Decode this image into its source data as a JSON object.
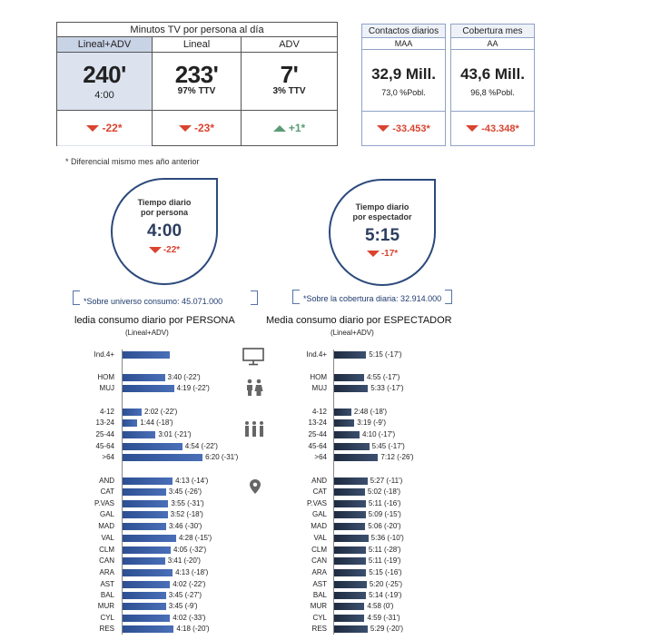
{
  "minutes_table": {
    "title": "Minutos TV por persona al día",
    "columns": [
      {
        "head": "Lineal+ADV",
        "value": "240'",
        "sub": "4:00",
        "diff": "-22*",
        "direction": "down"
      },
      {
        "head": "Lineal",
        "value": "233'",
        "sub": "97% TTV",
        "diff": "-23*",
        "direction": "down"
      },
      {
        "head": "ADV",
        "value": "7'",
        "sub": "3% TTV",
        "diff": "+1*",
        "direction": "up"
      }
    ]
  },
  "kpis": [
    {
      "head": "Contactos diarios",
      "sub": "MAA",
      "value": "32,9 Mill.",
      "small": "73,0 %Pobl.",
      "diff": "-33.453*"
    },
    {
      "head": "Cobertura mes",
      "sub": "AA",
      "value": "43,6 Mill.",
      "small": "96,8 %Pobl.",
      "diff": "-43.348*"
    }
  ],
  "footnote": "* Diferencial mismo mes año anterior",
  "bubbles": [
    {
      "label1": "Tiempo diario",
      "label2": "por persona",
      "time": "4:00",
      "diff": "-22*"
    },
    {
      "label1": "Tiempo diario",
      "label2": "por espectador",
      "time": "5:15",
      "diff": "-17*"
    }
  ],
  "notes": {
    "left": "*Sobre universo consumo: 45.071.000",
    "right": "*Sobre la cobertura diaria: 32.914.000"
  },
  "charts": {
    "left_title": "ledia consumo diario por PERSONA",
    "left_sub": "(Lineal+ADV)",
    "right_title": "Media consumo diario por ESPECTADOR",
    "right_sub": "(Lineal+ADV)"
  },
  "icons": [
    "tv-icon",
    "gender-icon",
    "age-group-icon",
    "location-pin-icon"
  ],
  "colors": {
    "persona_bar": "#3558a4",
    "espectador_bar": "#2a3a55",
    "negative": "#d9432f",
    "positive": "#5a9b75"
  },
  "chart_data": [
    {
      "type": "bar",
      "orientation": "horizontal",
      "title": "ledia consumo diario por PERSONA",
      "subtitle": "(Lineal+ADV)",
      "categories": [
        "Ind.4+",
        "HOM",
        "MUJ",
        "4-12",
        "13-24",
        "25-44",
        "45-64",
        ">64",
        "AND",
        "CAT",
        "P.VAS",
        "GAL",
        "MAD",
        "VAL",
        "CLM",
        "CAN",
        "ARA",
        "AST",
        "BAL",
        "MUR",
        "CYL",
        "RES"
      ],
      "values": [
        240,
        220,
        259,
        122,
        104,
        181,
        294,
        380,
        253,
        225,
        235,
        232,
        226,
        268,
        245,
        221,
        253,
        242,
        225,
        225,
        242,
        258
      ],
      "labels": [
        "",
        "3:40 (-22')",
        "4:19 (-22')",
        "2:02 (-22')",
        "1:44 (-18')",
        "3:01 (-21')",
        "4:54 (-22')",
        "6:20 (-31')",
        "4:13 (-14')",
        "3:45 (-26')",
        "3:55 (-31')",
        "3:52 (-18')",
        "3:46 (-30')",
        "4:28 (-15')",
        "4:05 (-32')",
        "3:41 (-20')",
        "4:13 (-18')",
        "4:02 (-22')",
        "3:45 (-27')",
        "3:45 (-9')",
        "4:02 (-33')",
        "4:18 (-20')"
      ]
    },
    {
      "type": "bar",
      "orientation": "horizontal",
      "title": "Media consumo diario por ESPECTADOR",
      "subtitle": "(Lineal+ADV)",
      "categories": [
        "Ind.4+",
        "HOM",
        "MUJ",
        "4-12",
        "13-24",
        "25-44",
        "45-64",
        ">64",
        "AND",
        "CAT",
        "P.VAS",
        "GAL",
        "MAD",
        "VAL",
        "CLM",
        "CAN",
        "ARA",
        "AST",
        "BAL",
        "MUR",
        "CYL",
        "RES"
      ],
      "values": [
        315,
        295,
        333,
        168,
        199,
        250,
        345,
        432,
        327,
        302,
        311,
        309,
        306,
        336,
        311,
        311,
        315,
        320,
        314,
        298,
        299,
        329
      ],
      "labels": [
        "5:15 (-17')",
        "4:55 (-17')",
        "5:33 (-17')",
        "2:48 (-18')",
        "3:19 (-9')",
        "4:10 (-17')",
        "5:45 (-17')",
        "7:12 (-26')",
        "5:27 (-11')",
        "5:02 (-18')",
        "5:11 (-16')",
        "5:09 (-15')",
        "5:06 (-20')",
        "5:36 (-10')",
        "5:11 (-28')",
        "5:11 (-19')",
        "5:15 (-16')",
        "5:20 (-25')",
        "5:14 (-19')",
        "4:58 (0')",
        "4:59 (-31')",
        "5:29 (-20')"
      ]
    }
  ]
}
